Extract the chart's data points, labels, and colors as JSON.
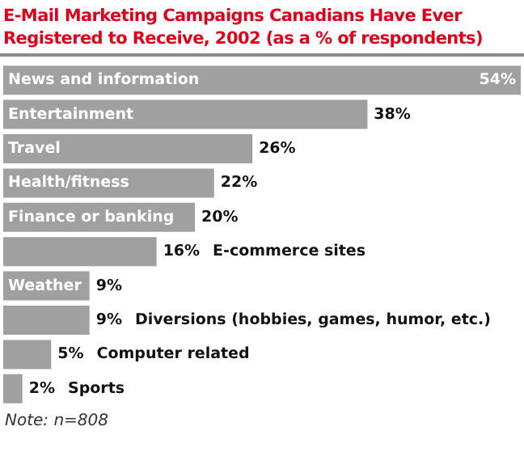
{
  "chart_data": {
    "type": "bar",
    "orientation": "horizontal",
    "title": "E-Mail Marketing Campaigns Canadians Have Ever Registered to Receive, 2002 (as a % of respondents)",
    "categories": [
      "News and information",
      "Entertainment",
      "Travel",
      "Health/fitness",
      "Finance or banking",
      "E-commerce sites",
      "Weather",
      "Diversions (hobbies, games, humor, etc.)",
      "Computer related",
      "Sports"
    ],
    "values": [
      54,
      38,
      26,
      22,
      20,
      16,
      9,
      9,
      5,
      2
    ],
    "value_labels": [
      "54%",
      "38%",
      "26%",
      "22%",
      "20%",
      "16%",
      "9%",
      "9%",
      "5%",
      "2%"
    ],
    "color": "#a0a0a0",
    "annotations": [
      "Note: n=808"
    ]
  }
}
